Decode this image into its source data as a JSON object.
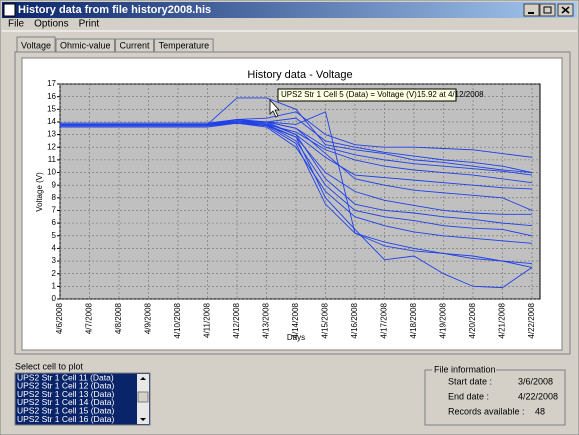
{
  "window_title": "History data from file history2008.his",
  "menu": [
    "File",
    "Options",
    "Print"
  ],
  "tabs": [
    "Voltage",
    "Ohmic-value",
    "Current",
    "Temperature"
  ],
  "chart_data": {
    "type": "line",
    "title": "History data - Voltage",
    "x_label": "Days",
    "y_label": "Voltage (V)",
    "categories": [
      "4/6/2008",
      "4/7/2008",
      "4/8/2008",
      "4/9/2008",
      "4/10/2008",
      "4/11/2008",
      "4/12/2008",
      "4/13/2008",
      "4/14/2008",
      "4/15/2008",
      "4/16/2008",
      "4/17/2008",
      "4/18/2008",
      "4/19/2008",
      "4/20/2008",
      "4/21/2008",
      "4/22/2008"
    ],
    "color": "#2040e8",
    "series": [
      {
        "values": [
          13.8,
          13.8,
          13.8,
          13.8,
          13.8,
          13.8,
          15.9,
          15.9,
          15.0,
          12.2,
          11.8,
          11.5,
          11.0,
          10.8,
          10.5,
          10.2,
          10.0
        ]
      },
      {
        "values": [
          13.9,
          13.9,
          13.9,
          13.9,
          13.9,
          13.9,
          14.2,
          14.3,
          14.8,
          13.0,
          12.2,
          12.0,
          12.0,
          11.9,
          11.8,
          11.5,
          11.2
        ]
      },
      {
        "values": [
          13.7,
          13.7,
          13.7,
          13.7,
          13.7,
          13.7,
          14.0,
          14.0,
          14.3,
          12.5,
          12.0,
          11.6,
          11.3,
          11.0,
          10.8,
          10.5,
          10.0
        ]
      },
      {
        "values": [
          13.8,
          13.8,
          13.8,
          13.8,
          13.8,
          13.8,
          14.1,
          14.0,
          13.5,
          12.0,
          11.4,
          11.0,
          10.7,
          10.5,
          10.3,
          10.1,
          9.8
        ]
      },
      {
        "values": [
          13.6,
          13.6,
          13.6,
          13.6,
          13.6,
          13.6,
          13.9,
          13.8,
          13.2,
          11.8,
          11.0,
          10.5,
          10.2,
          10.0,
          9.8,
          9.5,
          9.2
        ]
      },
      {
        "values": [
          13.8,
          13.8,
          13.8,
          13.8,
          13.8,
          13.8,
          14.0,
          13.9,
          13.0,
          11.2,
          9.8,
          9.6,
          9.4,
          9.2,
          9.0,
          8.8,
          8.7
        ]
      },
      {
        "values": [
          13.9,
          13.9,
          13.9,
          13.9,
          13.9,
          13.9,
          14.1,
          14.0,
          13.5,
          11.5,
          9.5,
          9.0,
          8.6,
          8.4,
          8.2,
          8.0,
          7.0
        ]
      },
      {
        "values": [
          13.7,
          13.7,
          13.7,
          13.7,
          13.7,
          13.7,
          13.9,
          13.7,
          12.8,
          10.0,
          8.5,
          7.8,
          7.4,
          7.0,
          6.8,
          6.7,
          6.7
        ]
      },
      {
        "values": [
          13.8,
          13.8,
          13.8,
          13.8,
          13.8,
          13.8,
          14.2,
          14.0,
          13.0,
          9.5,
          7.5,
          7.0,
          6.8,
          6.5,
          6.3,
          6.0,
          5.8
        ]
      },
      {
        "values": [
          13.8,
          13.8,
          13.8,
          13.8,
          13.8,
          13.8,
          14.0,
          13.8,
          12.5,
          9.0,
          7.0,
          6.5,
          6.2,
          5.8,
          5.6,
          5.5,
          5.0
        ]
      },
      {
        "values": [
          13.7,
          13.7,
          13.7,
          13.7,
          13.7,
          13.7,
          13.9,
          13.6,
          12.0,
          8.5,
          6.5,
          5.8,
          5.3,
          5.0,
          4.8,
          4.6,
          4.4
        ]
      },
      {
        "values": [
          13.8,
          13.8,
          13.8,
          13.8,
          13.8,
          13.8,
          14.1,
          14.0,
          13.8,
          14.8,
          5.2,
          4.2,
          3.8,
          3.6,
          3.4,
          3.0,
          2.5
        ]
      },
      {
        "values": [
          13.8,
          13.8,
          13.8,
          13.8,
          13.8,
          13.8,
          14.0,
          13.8,
          12.8,
          8.0,
          5.5,
          3.1,
          3.4,
          2.0,
          1.0,
          0.9,
          2.5
        ]
      },
      {
        "values": [
          13.8,
          13.8,
          13.8,
          13.8,
          13.8,
          13.8,
          13.9,
          13.7,
          12.3,
          7.5,
          5.2,
          4.5,
          4.0,
          3.6,
          3.2,
          3.0,
          2.8
        ]
      }
    ],
    "ylim": [
      0,
      17
    ],
    "yticks": [
      0,
      1,
      2,
      3,
      4,
      5,
      6,
      7,
      8,
      9,
      10,
      11,
      12,
      13,
      14,
      15,
      16,
      17
    ],
    "grid": true,
    "tooltip": "UPS2 Str 1 Cell 5 (Data) = Voltage (V)15.92 at 4/12/2008"
  },
  "select_label": "Select cell to plot",
  "cell_list": [
    "UPS2 Str 1 Cell 11 (Data)",
    "UPS2 Str 1 Cell 12 (Data)",
    "UPS2 Str 1 Cell 13 (Data)",
    "UPS2 Str 1 Cell 14 (Data)",
    "UPS2 Str 1 Cell 15 (Data)",
    "UPS2 Str 1 Cell 16 (Data)"
  ],
  "file_info": {
    "title": "File information",
    "rows": [
      {
        "label": "Start date :",
        "value": "3/6/2008"
      },
      {
        "label": "End date :",
        "value": "4/22/2008"
      },
      {
        "label": "Records available :",
        "value": "48"
      }
    ]
  }
}
